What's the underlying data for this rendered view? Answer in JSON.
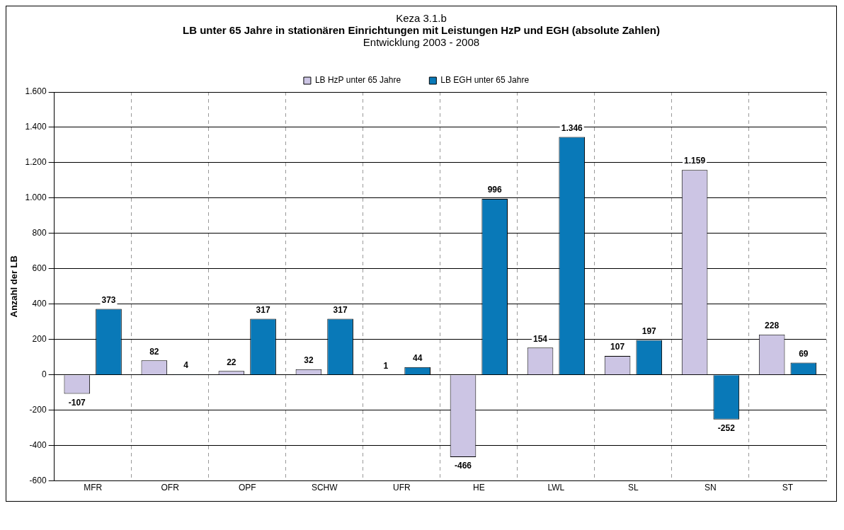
{
  "chart_data": {
    "type": "bar",
    "annotations": [
      "Keza 3.1.b"
    ],
    "title": "LB unter 65 Jahre in stationären Einrichtungen mit Leistungen HzP und EGH (absolute Zahlen)",
    "subtitle": "Entwicklung 2003 - 2008",
    "ylabel": "Anzahl der LB",
    "categories": [
      "MFR",
      "OFR",
      "OPF",
      "SCHW",
      "UFR",
      "HE",
      "LWL",
      "SL",
      "SN",
      "ST"
    ],
    "series": [
      {
        "name": "LB HzP unter 65 Jahre",
        "color": "#ccc5e4",
        "values": [
          -107,
          82,
          22,
          32,
          1,
          -466,
          154,
          107,
          1159,
          228
        ],
        "value_labels": [
          "-107",
          "82",
          "22",
          "32",
          "1",
          "-466",
          "154",
          "107",
          "1.159",
          "228"
        ]
      },
      {
        "name": "LB EGH unter 65 Jahre",
        "color": "#0979b8",
        "values": [
          373,
          4,
          317,
          317,
          44,
          996,
          1346,
          197,
          -252,
          69
        ],
        "value_labels": [
          "373",
          "4",
          "317",
          "317",
          "44",
          "996",
          "1.346",
          "197",
          "-252",
          "69"
        ]
      }
    ],
    "ylim": [
      -600,
      1600
    ],
    "yticks": [
      {
        "value": -600,
        "label": "-600"
      },
      {
        "value": -400,
        "label": "-400"
      },
      {
        "value": -200,
        "label": "-200"
      },
      {
        "value": 0,
        "label": "0"
      },
      {
        "value": 200,
        "label": "200"
      },
      {
        "value": 400,
        "label": "400"
      },
      {
        "value": 600,
        "label": "600"
      },
      {
        "value": 800,
        "label": "800"
      },
      {
        "value": 1000,
        "label": "1.000"
      },
      {
        "value": 1200,
        "label": "1.200"
      },
      {
        "value": 1400,
        "label": "1.400"
      },
      {
        "value": 1600,
        "label": "1.600"
      }
    ],
    "grid": true,
    "legend": "top"
  }
}
